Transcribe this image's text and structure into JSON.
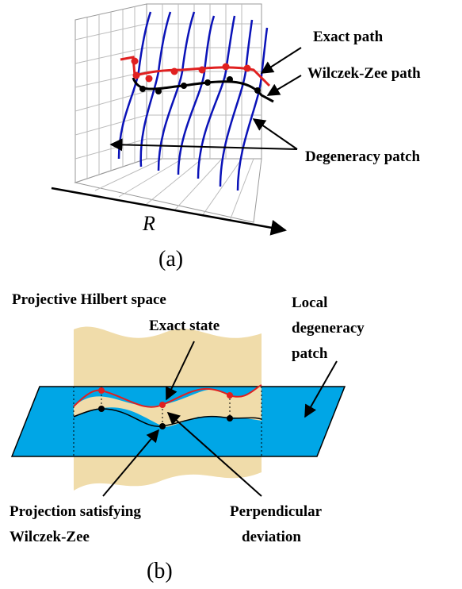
{
  "panel_a": {
    "exact_path": "Exact path",
    "wz_path": "Wilczek-Zee path",
    "degeneracy_patch": "Degeneracy patch",
    "axis_label": "R",
    "caption": "(a)"
  },
  "panel_b": {
    "title": "Projective Hilbert space",
    "local_patch": [
      "Local",
      "degeneracy",
      "patch"
    ],
    "exact_state": "Exact state",
    "projection": [
      "Projection satisfying",
      "Wilczek-Zee"
    ],
    "deviation": [
      "Perpendicular",
      "deviation"
    ],
    "caption": "(b)"
  }
}
